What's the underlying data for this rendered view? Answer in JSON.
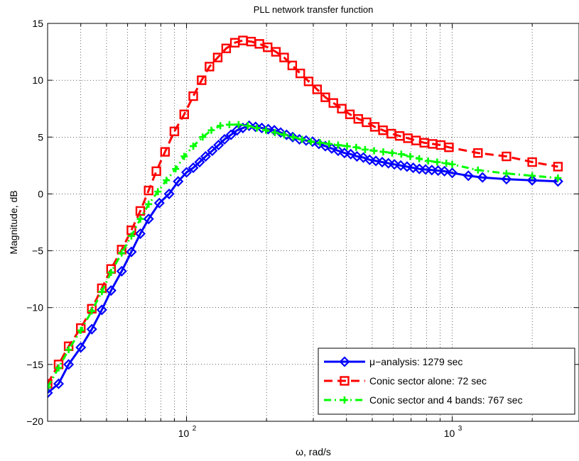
{
  "chart_data": {
    "type": "line",
    "title": "PLL network transfer function",
    "xlabel": "ω, rad/s",
    "ylabel": "Magnitude, dB",
    "xscale": "log",
    "xlim": [
      30,
      3000
    ],
    "ylim": [
      -20,
      15
    ],
    "grid": true,
    "legend_position": "bottom-right",
    "y_ticks": [
      15,
      10,
      5,
      0,
      -5,
      -10,
      -15,
      -20
    ],
    "y_tick_labels": [
      "15",
      "10",
      "5",
      "0",
      "−5",
      "−10",
      "−15",
      "−20"
    ],
    "x_ticks": [
      {
        "value": 100,
        "base": "10",
        "exp": "2"
      },
      {
        "value": 1000,
        "base": "10",
        "exp": "3"
      }
    ],
    "series": [
      {
        "name": "μ−analysis: 1279 sec",
        "color": "#0000ff",
        "line_style": "solid",
        "marker": "diamond",
        "x": [
          30,
          33,
          36,
          40,
          44,
          48,
          52,
          57,
          62,
          67,
          72,
          79,
          86,
          93,
          100,
          106,
          112,
          118,
          125,
          132,
          139,
          147,
          155,
          163,
          172,
          182,
          192,
          203,
          214,
          226,
          238,
          251,
          266,
          282,
          298,
          315,
          333,
          352,
          372,
          393,
          415,
          438,
          463,
          489,
          516,
          545,
          575,
          606,
          640,
          676,
          713,
          752,
          794,
          838,
          885,
          935,
          1000,
          1150,
          1300,
          1600,
          2000,
          2500
        ],
        "y": [
          -17.5,
          -16.7,
          -15.0,
          -13.5,
          -11.9,
          -10.2,
          -8.5,
          -6.8,
          -5.1,
          -3.5,
          -2.2,
          -0.8,
          0.0,
          1.1,
          1.9,
          2.3,
          2.8,
          3.3,
          3.8,
          4.3,
          4.8,
          5.2,
          5.6,
          5.8,
          6.0,
          5.9,
          5.8,
          5.7,
          5.6,
          5.4,
          5.2,
          5.0,
          4.8,
          4.7,
          4.6,
          4.4,
          4.2,
          4.0,
          3.8,
          3.6,
          3.5,
          3.3,
          3.2,
          3.0,
          2.9,
          2.8,
          2.7,
          2.6,
          2.5,
          2.4,
          2.3,
          2.2,
          2.15,
          2.1,
          2.05,
          2.0,
          1.85,
          1.6,
          1.45,
          1.3,
          1.2,
          1.1
        ]
      },
      {
        "name": "Conic sector alone: 72 sec",
        "color": "#ff0000",
        "line_style": "dashed",
        "marker": "square",
        "x": [
          30,
          33,
          36,
          40,
          44,
          48,
          52,
          57,
          62,
          67,
          72,
          77,
          83,
          90,
          98,
          106,
          114,
          122,
          131,
          141,
          152,
          163,
          175,
          188,
          202,
          217,
          233,
          250,
          268,
          288,
          310,
          333,
          357,
          384,
          412,
          443,
          476,
          511,
          549,
          590,
          634,
          681,
          731,
          785,
          843,
          905,
          972,
          1250,
          1600,
          2000,
          2500
        ],
        "y": [
          -16.7,
          -15.0,
          -13.4,
          -11.8,
          -10.1,
          -8.3,
          -6.6,
          -4.9,
          -3.2,
          -1.5,
          0.3,
          2.0,
          3.7,
          5.5,
          7.0,
          8.6,
          10.0,
          11.2,
          12.0,
          12.8,
          13.3,
          13.5,
          13.4,
          13.2,
          12.9,
          12.5,
          12.0,
          11.3,
          10.6,
          9.9,
          9.2,
          8.5,
          8.0,
          7.5,
          7.0,
          6.6,
          6.3,
          5.9,
          5.6,
          5.3,
          5.1,
          4.9,
          4.7,
          4.5,
          4.4,
          4.3,
          4.1,
          3.6,
          3.3,
          2.8,
          2.4
        ]
      },
      {
        "name": "Conic sector and 4 bands: 767 sec",
        "color": "#00ff00",
        "line_style": "dashdot",
        "marker": "plus",
        "x": [
          30,
          33,
          36,
          40,
          44,
          48,
          52,
          57,
          62,
          67,
          72,
          78,
          84,
          91,
          98,
          106,
          115,
          124,
          134,
          145,
          157,
          170,
          184,
          199,
          215,
          233,
          252,
          272,
          294,
          318,
          344,
          372,
          402,
          435,
          470,
          508,
          550,
          594,
          643,
          695,
          751,
          812,
          878,
          950,
          1000,
          1250,
          1600,
          2000,
          2500
        ],
        "y": [
          -17.0,
          -15.3,
          -13.7,
          -12.0,
          -10.3,
          -8.6,
          -6.9,
          -5.2,
          -3.7,
          -2.2,
          -0.9,
          0.2,
          1.2,
          2.2,
          3.3,
          4.2,
          5.0,
          5.6,
          6.0,
          6.1,
          6.1,
          6.0,
          5.8,
          5.6,
          5.4,
          5.2,
          5.0,
          4.8,
          4.6,
          4.5,
          4.4,
          4.3,
          4.2,
          4.1,
          3.9,
          3.8,
          3.7,
          3.6,
          3.5,
          3.3,
          3.1,
          2.9,
          2.8,
          2.7,
          2.6,
          2.1,
          1.8,
          1.6,
          1.4
        ]
      }
    ]
  }
}
